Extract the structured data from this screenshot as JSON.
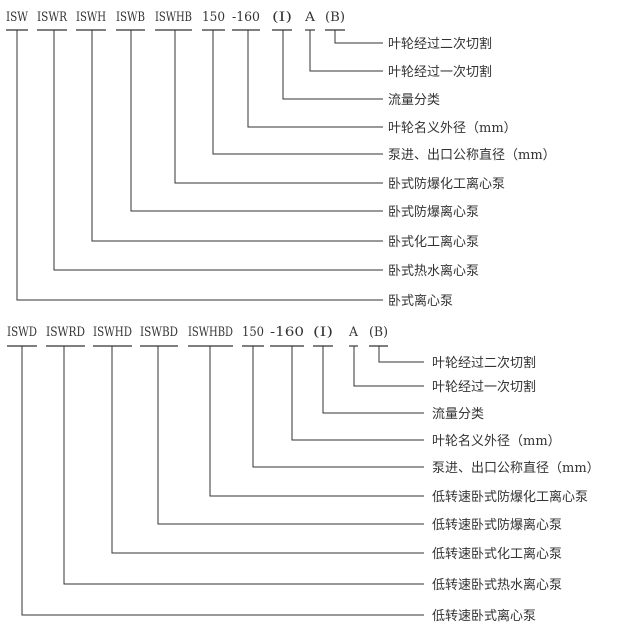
{
  "diagrams": [
    {
      "name": "standard-series",
      "items": [
        {
          "code": "ISW",
          "description": "卧式离心泵"
        },
        {
          "code": "ISWR",
          "description": "卧式热水离心泵"
        },
        {
          "code": "ISWH",
          "description": "卧式化工离心泵"
        },
        {
          "code": "ISWB",
          "description": "卧式防爆离心泵"
        },
        {
          "code": "ISWHB",
          "description": "卧式防爆化工离心泵"
        },
        {
          "code": "150",
          "description": "泵进、出口公称直径（mm）"
        },
        {
          "code": "-160",
          "description": "叶轮名义外径（mm）"
        },
        {
          "code": "(I)",
          "description": "流量分类"
        },
        {
          "code": "A",
          "description": "叶轮经过一次切割"
        },
        {
          "code": "(B)",
          "description": "叶轮经过二次切割"
        }
      ]
    },
    {
      "name": "low-speed-series",
      "items": [
        {
          "code": "ISWD",
          "description": "低转速卧式离心泵"
        },
        {
          "code": "ISWRD",
          "description": "低转速卧式热水离心泵"
        },
        {
          "code": "ISWHD",
          "description": "低转速卧式化工离心泵"
        },
        {
          "code": "ISWBD",
          "description": "低转速卧式防爆离心泵"
        },
        {
          "code": "ISWHBD",
          "description": "低转速卧式防爆化工离心泵"
        },
        {
          "code": "150",
          "description": "泵进、出口公称直径（mm）"
        },
        {
          "code": "-160",
          "description": "叶轮名义外径（mm）"
        },
        {
          "code": "(I)",
          "description": "流量分类"
        },
        {
          "code": "A",
          "description": "叶轮经过一次切割"
        },
        {
          "code": "(B)",
          "description": "叶轮经过二次切割"
        }
      ]
    }
  ]
}
